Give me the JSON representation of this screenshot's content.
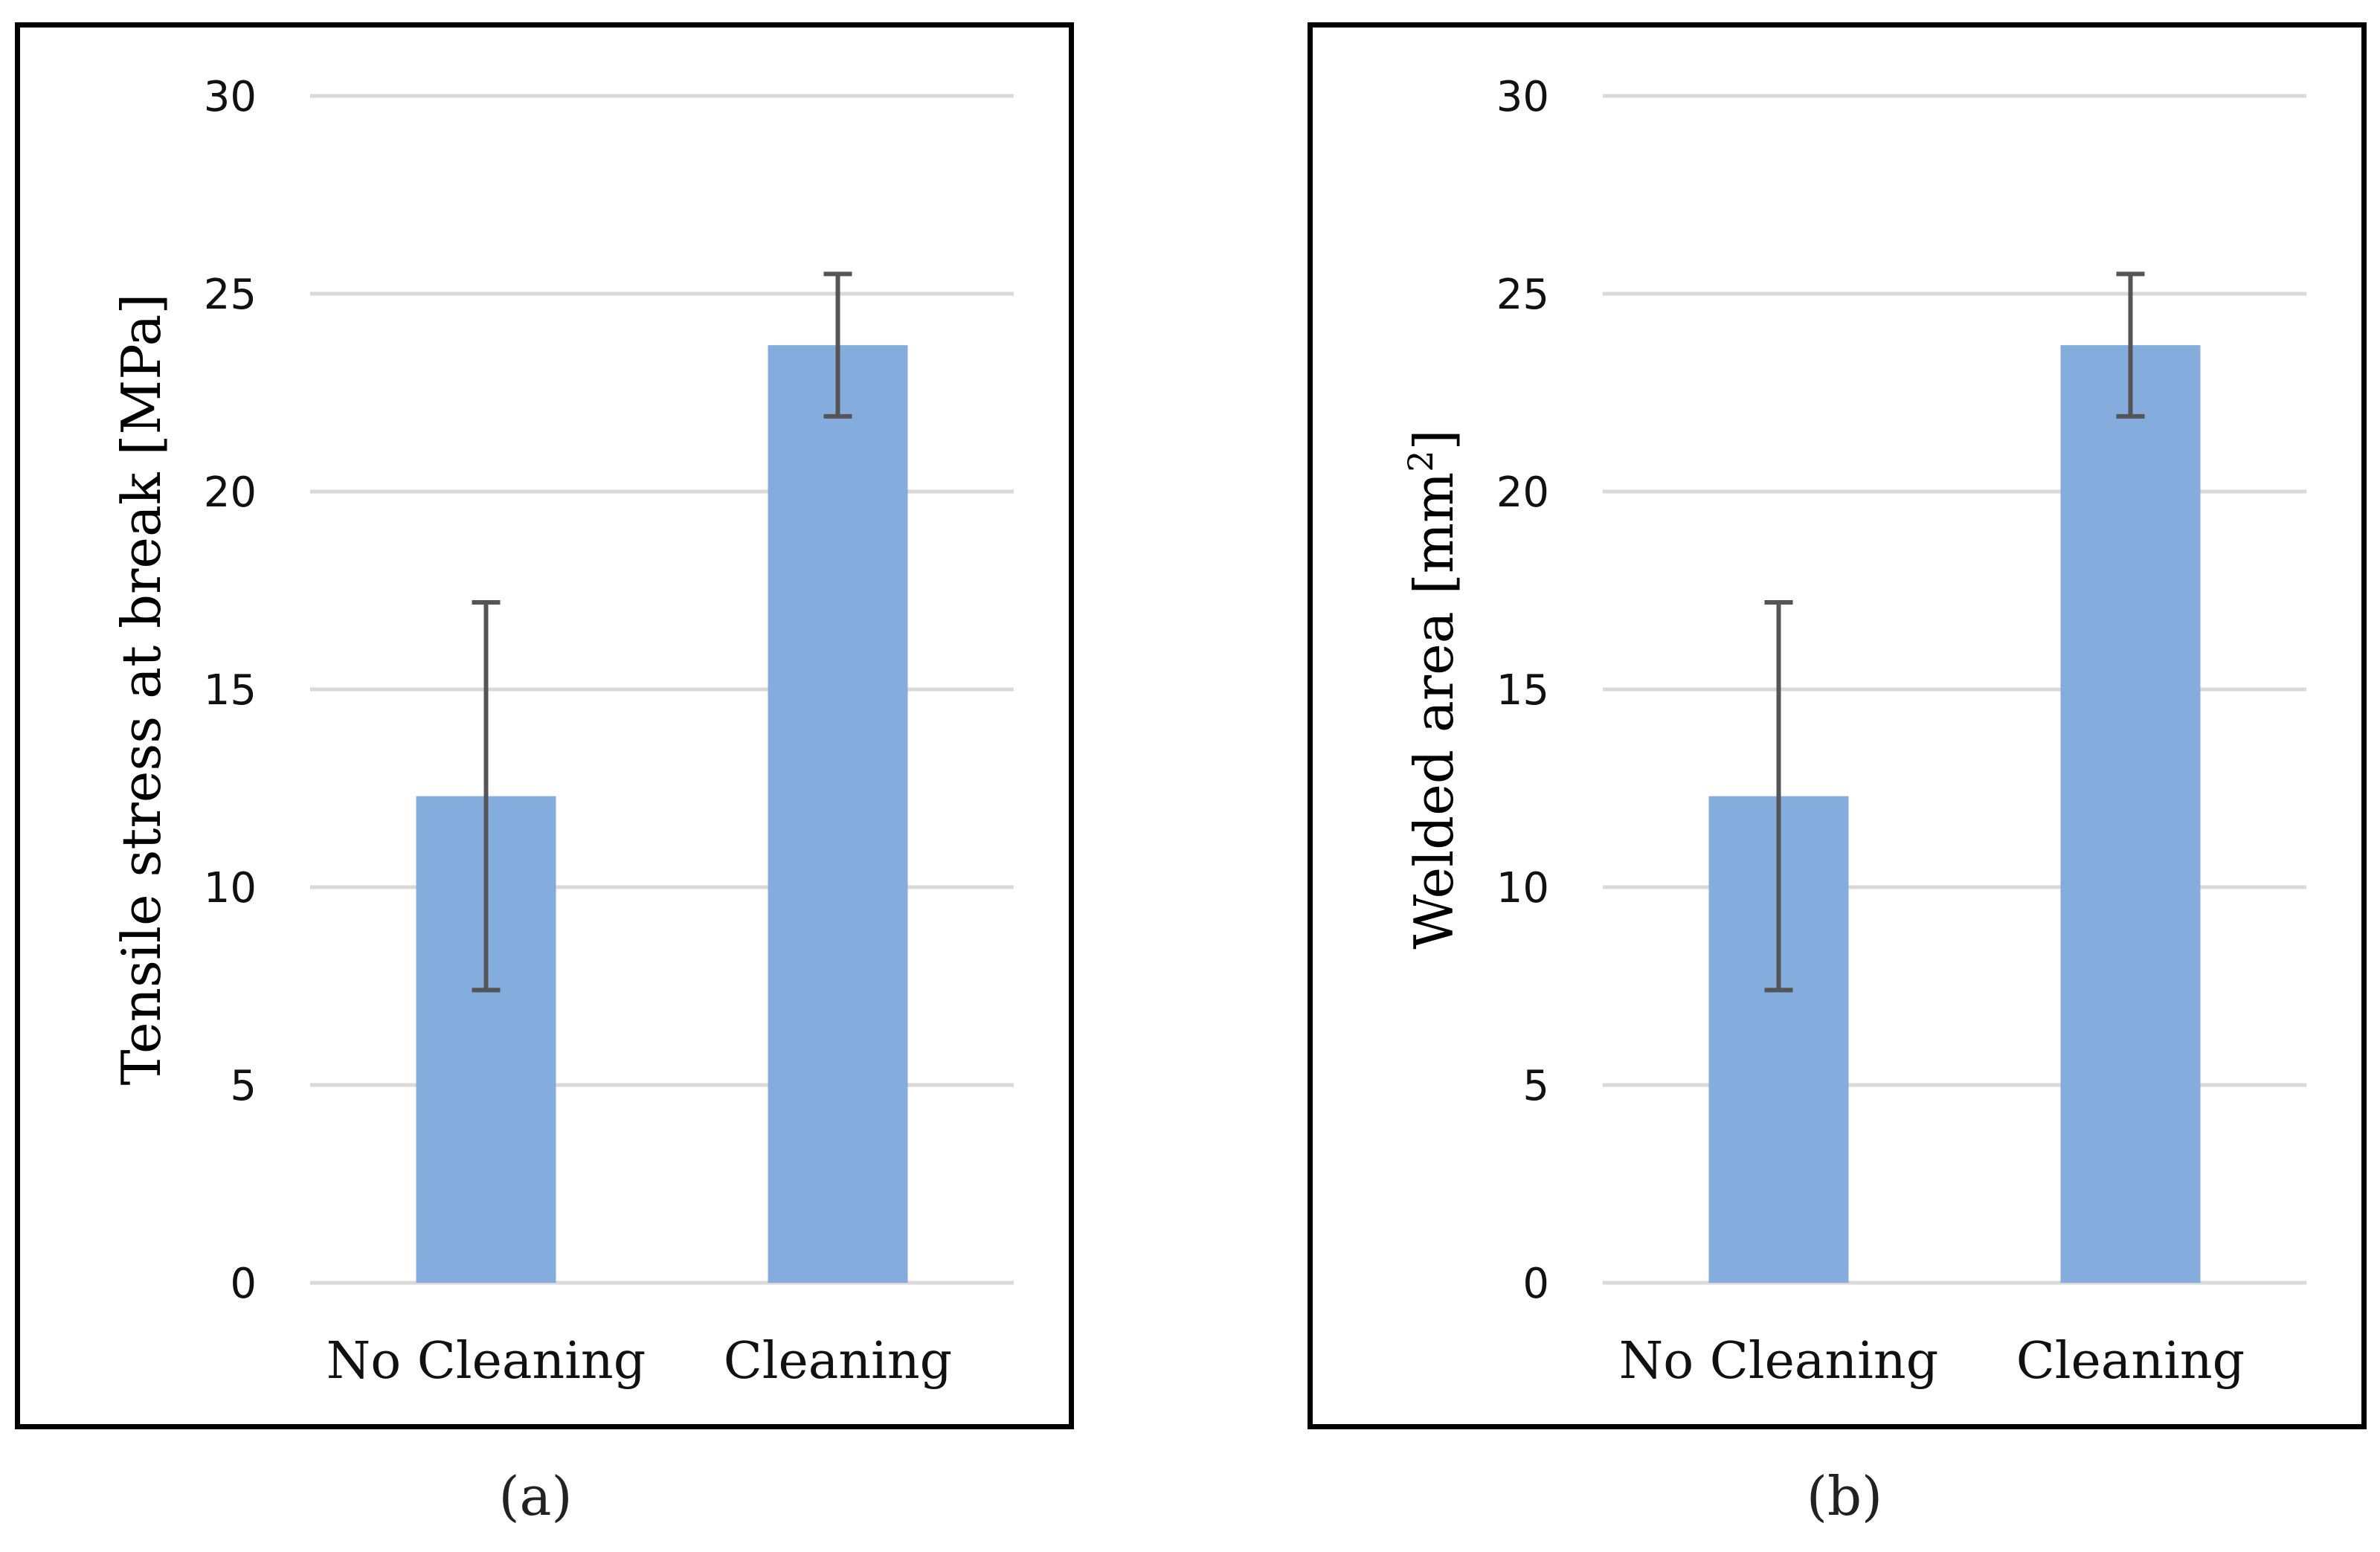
{
  "chart_data": [
    {
      "type": "bar",
      "panel_label": "(a)",
      "categories": [
        "No Cleaning",
        "Cleaning"
      ],
      "values": [
        12.3,
        23.7
      ],
      "errors": [
        4.9,
        1.8
      ],
      "ylabel": "Tensile stress at break [MPa]",
      "ylabel_superscript": "",
      "ylabel_suffix": "",
      "ylim": [
        0,
        30
      ],
      "yticks": [
        "0",
        "5",
        "10",
        "15",
        "20",
        "25",
        "30"
      ],
      "grid": true,
      "bar_color": "#84ACDC",
      "error_color": "#555555",
      "grid_color": "#D9D9D9"
    },
    {
      "type": "bar",
      "panel_label": "(b)",
      "categories": [
        "No Cleaning",
        "Cleaning"
      ],
      "values": [
        12.3,
        23.7
      ],
      "errors": [
        4.9,
        1.8
      ],
      "ylabel": "Welded area [mm",
      "ylabel_superscript": "2",
      "ylabel_suffix": "]",
      "ylim": [
        0,
        30
      ],
      "yticks": [
        "0",
        "5",
        "10",
        "15",
        "20",
        "25",
        "30"
      ],
      "grid": true,
      "bar_color": "#84ACDC",
      "error_color": "#555555",
      "grid_color": "#D9D9D9"
    }
  ]
}
